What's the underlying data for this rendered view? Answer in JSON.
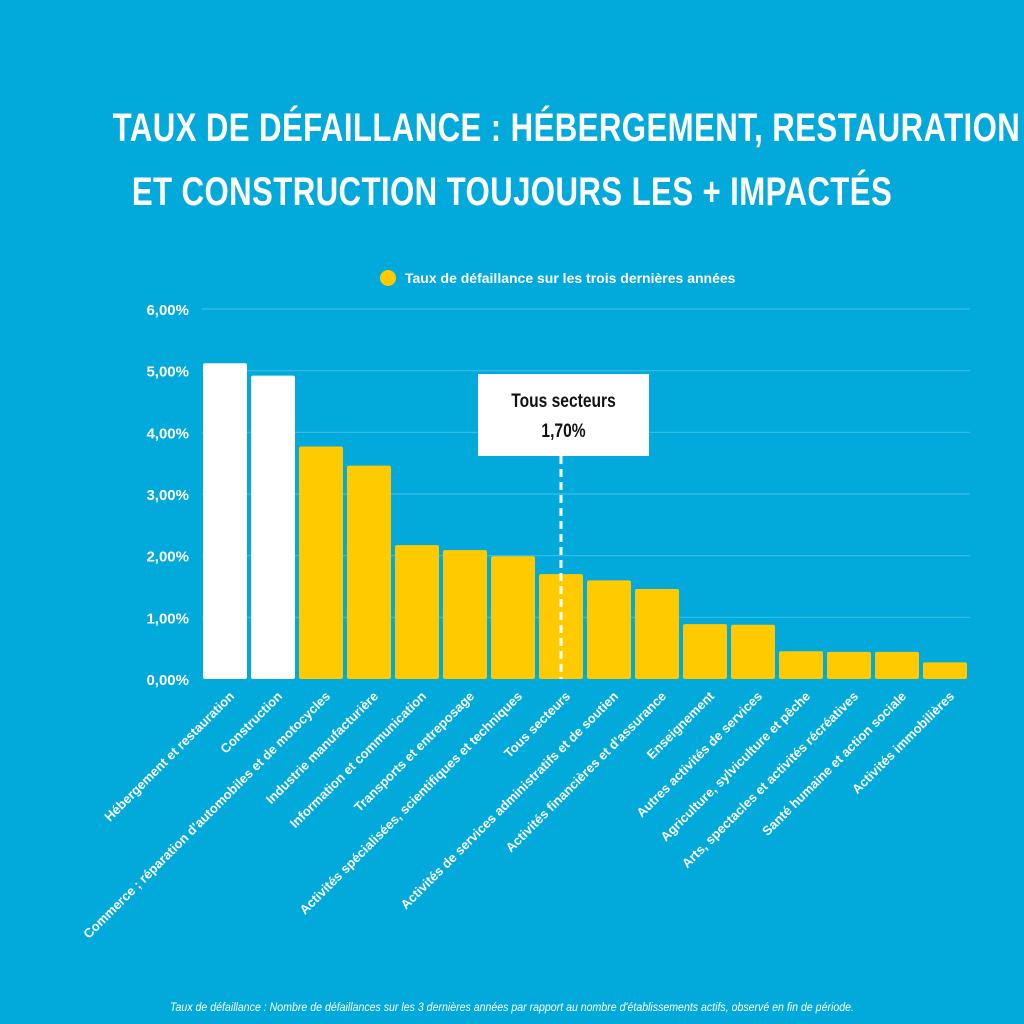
{
  "title_lines": [
    "TAUX DE DÉFAILLANCE : HÉBERGEMENT, RESTAURATION",
    "ET CONSTRUCTION TOUJOURS LES + IMPACTÉS"
  ],
  "legend": {
    "label": "Taux de défaillance sur les trois dernières années",
    "color": "#ffcb00"
  },
  "annotation": {
    "label": "Tous secteurs",
    "value": "1,70%"
  },
  "footnote": "Taux de défaillance : Nombre de défaillances sur les 3 dernières années par rapport au nombre d'établissements actifs, observé en fin de période.",
  "colors": {
    "background": "#02a9db",
    "bar_default": "#ffcb00",
    "bar_highlight": "#ffffff",
    "gridline": "#3dbfe6"
  },
  "chart_data": {
    "type": "bar",
    "title": "TAUX DE DÉFAILLANCE : HÉBERGEMENT, RESTAURATION ET CONSTRUCTION TOUJOURS LES + IMPACTÉS",
    "xlabel": "",
    "ylabel": "",
    "ylim": [
      0,
      6
    ],
    "yticks": [
      "0,00%",
      "1,00%",
      "2,00%",
      "3,00%",
      "4,00%",
      "5,00%",
      "6,00%"
    ],
    "grid": true,
    "legend_position": "top-center",
    "categories": [
      "Hébergement et restauration",
      "Construction",
      "Commerce ; réparation d'automobiles et de motocycles",
      "Industrie manufacturière",
      "Information et communication",
      "Transports et entreposage",
      "Activités spécialisées, scientifiques et techniques",
      "Tous secteurs",
      "Activités de services administratifs et de soutien",
      "Activités financières et d'assurance",
      "Enseignement",
      "Autres activités de services",
      "Agriculture, sylviculture et pêche",
      "Arts, spectacles et activités récréatives",
      "Santé humaine et action sociale",
      "Activités immobilières"
    ],
    "series": [
      {
        "name": "Taux de défaillance sur les trois dernières années",
        "unit": "%",
        "values": [
          5.12,
          4.92,
          3.77,
          3.46,
          2.17,
          2.09,
          1.99,
          1.7,
          1.6,
          1.46,
          0.89,
          0.88,
          0.45,
          0.44,
          0.44,
          0.27
        ],
        "highlight": [
          true,
          true,
          false,
          false,
          false,
          false,
          false,
          false,
          false,
          false,
          false,
          false,
          false,
          false,
          false,
          false
        ]
      }
    ],
    "reference_line": {
      "category": "Tous secteurs",
      "label": "Tous secteurs",
      "value": 1.7,
      "style": "dashed"
    }
  }
}
